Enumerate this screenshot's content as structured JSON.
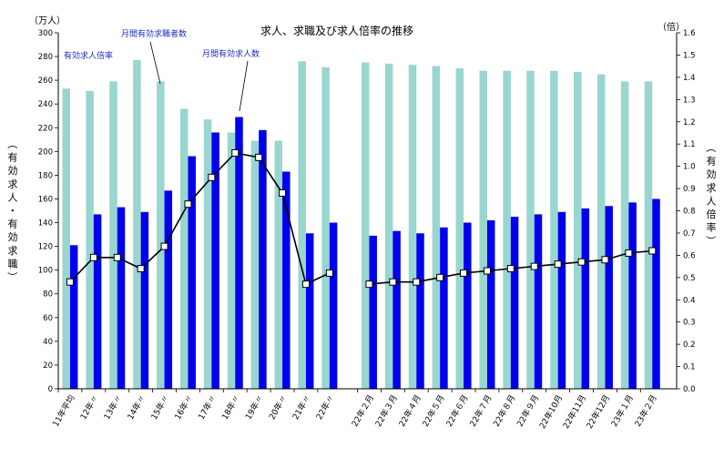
{
  "chart_data": {
    "type": "bar",
    "title": "求人、求職及び求人倍率の推移",
    "left_unit": "（万人）",
    "right_unit": "（倍）",
    "ylabel": "（有効求人・有効求職）",
    "y2label": "（有効求人倍率）",
    "ylim": [
      0,
      300
    ],
    "y_ticks": [
      0,
      20,
      40,
      60,
      80,
      100,
      120,
      140,
      160,
      180,
      200,
      220,
      240,
      260,
      280,
      300
    ],
    "y2lim": [
      0.0,
      1.6
    ],
    "y2_ticks": [
      "0.0",
      "0.1",
      "0.2",
      "0.3",
      "0.4",
      "0.5",
      "0.6",
      "0.7",
      "0.8",
      "0.9",
      "1.0",
      "1.1",
      "1.2",
      "1.3",
      "1.4",
      "1.5",
      "1.6"
    ],
    "grid": false,
    "categories": [
      "11年平均",
      "12年〃",
      "13年〃",
      "14年〃",
      "15年〃",
      "16年〃",
      "17年〃",
      "18年〃",
      "19年〃",
      "20年〃",
      "21年〃",
      "22年〃",
      "22年２月",
      "22年３月",
      "22年４月",
      "22年５月",
      "22年６月",
      "22年７月",
      "22年８月",
      "22年９月",
      "22年10月",
      "22年11月",
      "22年12月",
      "23年１月",
      "23年２月"
    ],
    "series": [
      {
        "name": "月間有効求職者数",
        "type": "bar",
        "color": "#99d6d0",
        "values": [
          253,
          251,
          259,
          277,
          259,
          236,
          227,
          216,
          209,
          209,
          276,
          271,
          275,
          274,
          273,
          272,
          270,
          268,
          268,
          268,
          268,
          267,
          265,
          259,
          259
        ]
      },
      {
        "name": "月間有効求人数",
        "type": "bar",
        "color": "#0000ee",
        "values": [
          121,
          147,
          153,
          149,
          167,
          196,
          216,
          229,
          218,
          183,
          131,
          140,
          129,
          133,
          131,
          136,
          140,
          142,
          145,
          147,
          149,
          152,
          154,
          157,
          160
        ]
      },
      {
        "name": "有効求人倍率",
        "type": "line",
        "axis": "right",
        "color": "#000000",
        "values": [
          0.48,
          0.59,
          0.59,
          0.54,
          0.64,
          0.83,
          0.95,
          1.06,
          1.04,
          0.88,
          0.47,
          0.52,
          0.47,
          0.48,
          0.48,
          0.5,
          0.52,
          0.53,
          0.54,
          0.55,
          0.56,
          0.57,
          0.58,
          0.61,
          0.62
        ]
      }
    ]
  }
}
